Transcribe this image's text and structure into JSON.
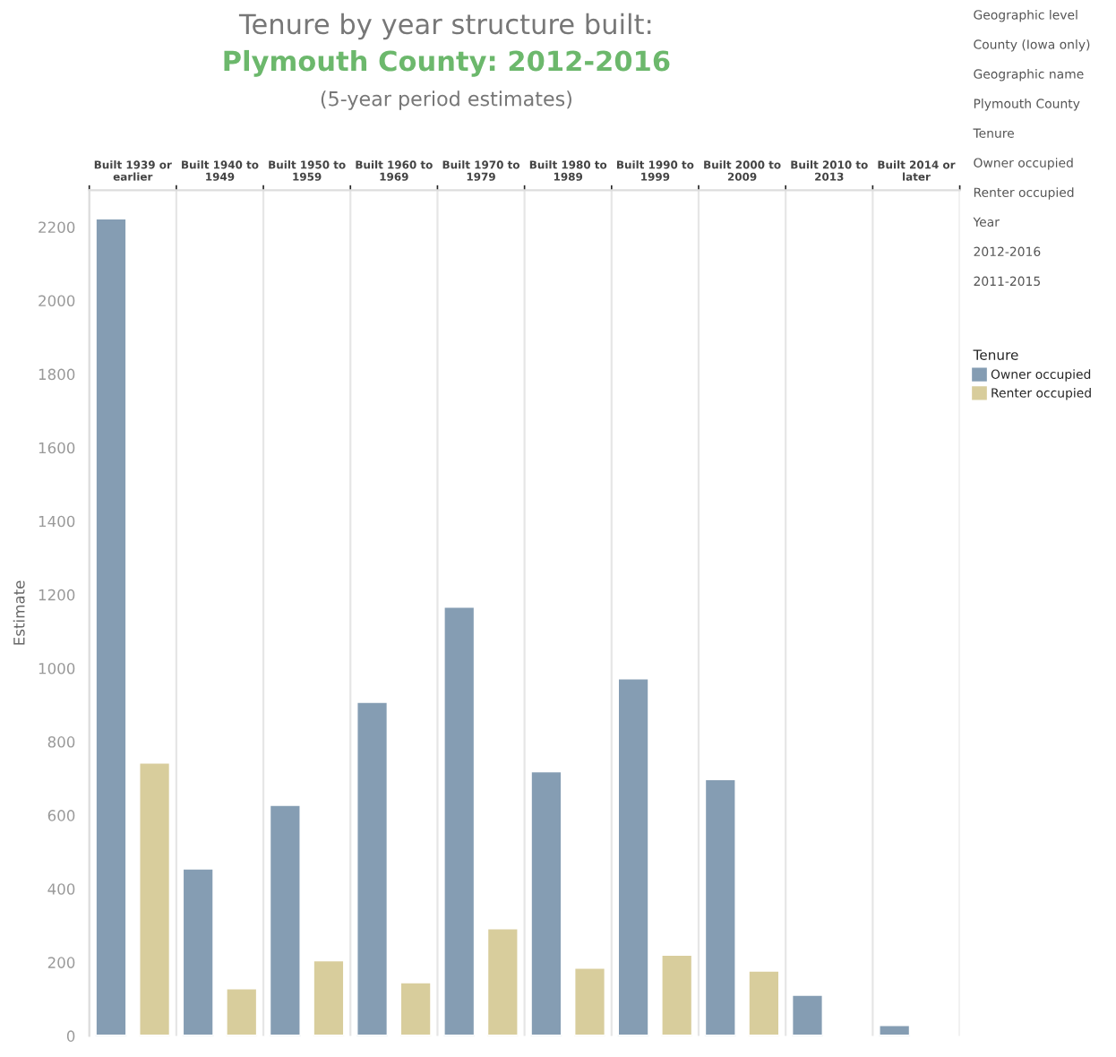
{
  "chart_data": {
    "type": "bar",
    "title": "Tenure by year structure built:",
    "subtitle": "Plymouth County: 2012-2016",
    "ylabel": "Estimate",
    "legend_title": "Tenure",
    "categories": [
      "Built 1939 or earlier",
      "Built 1940 to 1949",
      "Built 1950 to 1959",
      "Built 1960 to 1969",
      "Built 1970 to 1979",
      "Built 1980 to 1989",
      "Built 1990 to 1999",
      "Built 2000 to 2009",
      "Built 2010 to 2013",
      "Built 2014 or later"
    ],
    "series": [
      {
        "name": "Owner occupied",
        "color": "#859db3",
        "values": [
          2224,
          456,
          629,
          909,
          1168,
          720,
          973,
          699,
          112,
          30
        ]
      },
      {
        "name": "Renter occupied",
        "color": "#d8cd9c",
        "values": [
          744,
          130,
          206,
          146,
          293,
          186,
          221,
          178,
          null,
          null
        ]
      }
    ],
    "ylim": [
      0,
      2300
    ],
    "yticks": [
      0,
      200,
      400,
      600,
      800,
      1000,
      1200,
      1400,
      1600,
      1800,
      2000,
      2200
    ],
    "grid": "x",
    "legend": "right",
    "annotations": [
      "(5-year period estimates)",
      "Geographic level",
      "County (Iowa only)",
      "Geographic name",
      "Plymouth County",
      "Tenure",
      "Owner occupied",
      "Renter occupied",
      "Year",
      "2012-2016",
      "2011-2015"
    ]
  }
}
